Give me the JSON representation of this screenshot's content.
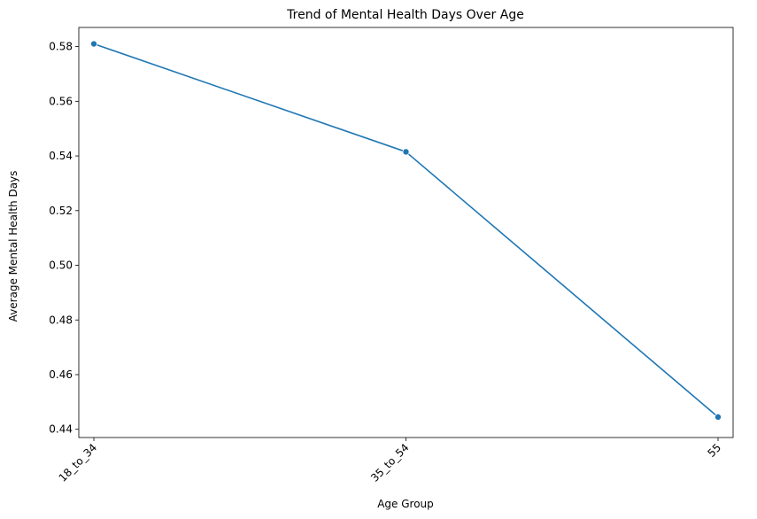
{
  "chart_data": {
    "type": "line",
    "title": "Trend of Mental Health Days Over Age",
    "xlabel": "Age Group",
    "ylabel": "Average Mental Health Days",
    "categories": [
      "18_to_34",
      "35_to_54",
      "55"
    ],
    "series": [
      {
        "values": [
          0.581,
          0.5415,
          0.4445
        ],
        "color": "#1f77b4",
        "marker": "circle"
      }
    ],
    "ylim": [
      0.437,
      0.587
    ],
    "yticks": [
      "0.44",
      "0.46",
      "0.48",
      "0.50",
      "0.52",
      "0.54",
      "0.56",
      "0.58"
    ],
    "grid": false,
    "x_tick_rotation_deg": 45
  }
}
